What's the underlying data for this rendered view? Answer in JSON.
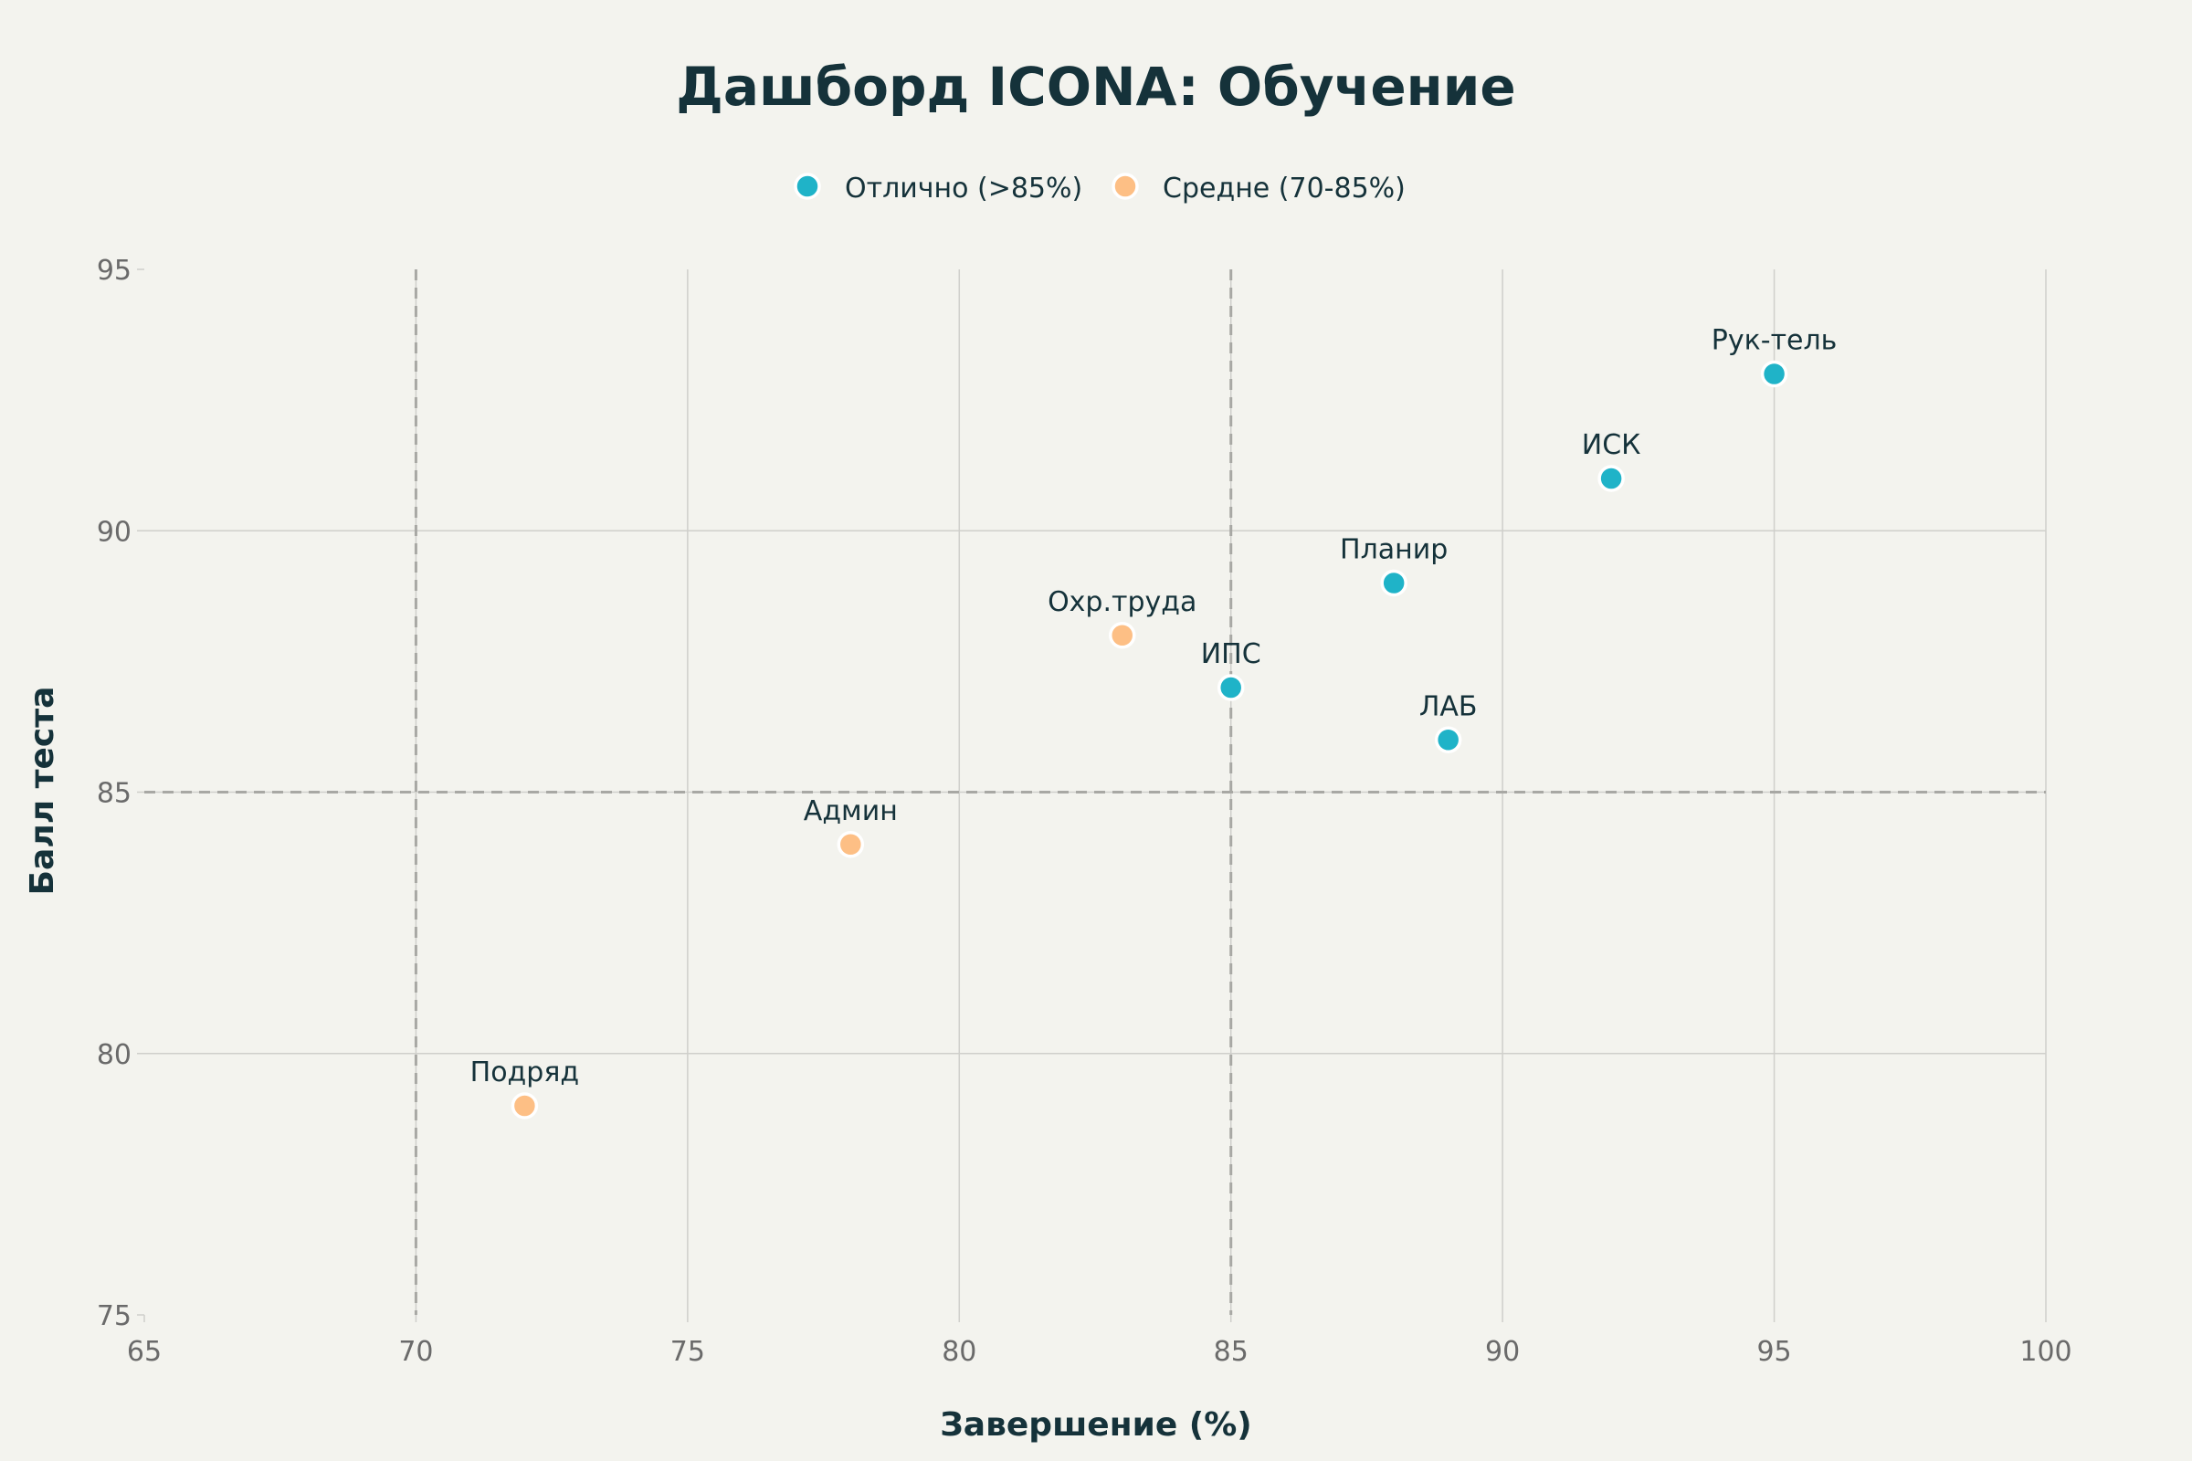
{
  "chart_data": {
    "type": "scatter",
    "title": "Дашборд ICONA: Обучение",
    "xlabel": "Завершение (%)",
    "ylabel": "Балл теста",
    "xlim": [
      65,
      100
    ],
    "ylim": [
      75,
      95
    ],
    "x_ticks": [
      65,
      70,
      75,
      80,
      85,
      90,
      95,
      100
    ],
    "y_ticks": [
      75,
      80,
      85,
      90,
      95
    ],
    "grid": true,
    "legend_position": "top-center",
    "reference_lines": {
      "x": [
        70,
        85
      ],
      "y": [
        85
      ]
    },
    "colors": {
      "background": "#f3f3ee",
      "grid": "#cfcfcb",
      "reference": "#a8a8a4",
      "text": "#15323a",
      "tick": "#6a6a6a"
    },
    "series": [
      {
        "name": "Отлично (>85%)",
        "color": "#1fb3c8",
        "points": [
          {
            "label": "Рук-тель",
            "x": 95,
            "y": 93
          },
          {
            "label": "ИСК",
            "x": 92,
            "y": 91
          },
          {
            "label": "Планир",
            "x": 88,
            "y": 89
          },
          {
            "label": "ИПС",
            "x": 85,
            "y": 87
          },
          {
            "label": "ЛАБ",
            "x": 89,
            "y": 86
          }
        ]
      },
      {
        "name": "Средне (70-85%)",
        "color": "#fdbf85",
        "points": [
          {
            "label": "Охр.труда",
            "x": 83,
            "y": 88
          },
          {
            "label": "Админ",
            "x": 78,
            "y": 84
          },
          {
            "label": "Подряд",
            "x": 72,
            "y": 79
          }
        ]
      }
    ]
  }
}
